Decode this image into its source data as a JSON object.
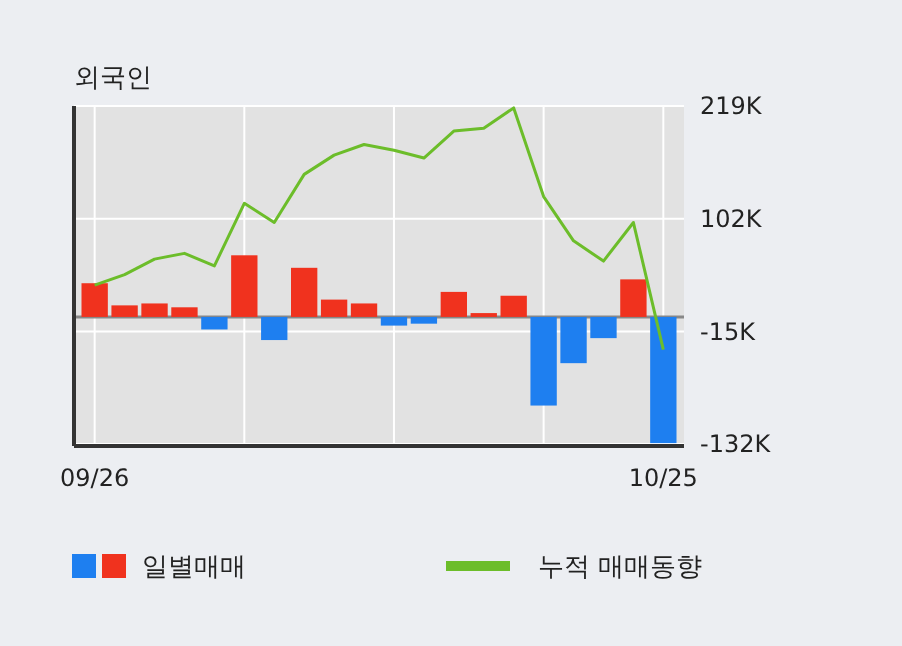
{
  "chart_data": {
    "type": "bar",
    "title": "외국인",
    "categories": [
      "09/26",
      null,
      null,
      null,
      null,
      null,
      null,
      null,
      null,
      null,
      null,
      null,
      null,
      null,
      null,
      null,
      null,
      null,
      null,
      "10/25"
    ],
    "series": [
      {
        "name": "일별매매",
        "colors": [
          "#f0321e",
          "#f0321e",
          "#f0321e",
          "#f0321e",
          "#1e7ff0",
          "#f0321e",
          "#1e7ff0",
          "#f0321e",
          "#f0321e",
          "#f0321e",
          "#1e7ff0",
          "#1e7ff0",
          "#f0321e",
          "#f0321e",
          "#f0321e",
          "#1e7ff0",
          "#1e7ff0",
          "#1e7ff0",
          "#f0321e",
          "#1e7ff0"
        ],
        "values": [
          35,
          12,
          14,
          10,
          -13,
          64,
          -24,
          51,
          18,
          14,
          -9,
          -7,
          26,
          4,
          22,
          -92,
          -48,
          -22,
          39,
          -131
        ]
      },
      {
        "name": "누적 매매동향",
        "type": "line",
        "color": "#6cbd2a",
        "values": [
          33,
          44,
          60,
          66,
          53,
          118,
          98,
          148,
          168,
          179,
          173,
          165,
          193,
          196,
          217,
          125,
          79,
          58,
          98,
          -34
        ]
      }
    ],
    "ylim": [
      -134,
      219
    ],
    "yticks": [
      {
        "value": 219,
        "label": "219K"
      },
      {
        "value": 102,
        "label": "102K"
      },
      {
        "value": -15,
        "label": "-15K"
      },
      {
        "value": -132,
        "label": "-132K"
      }
    ],
    "grid": true,
    "legend": "bottom"
  }
}
